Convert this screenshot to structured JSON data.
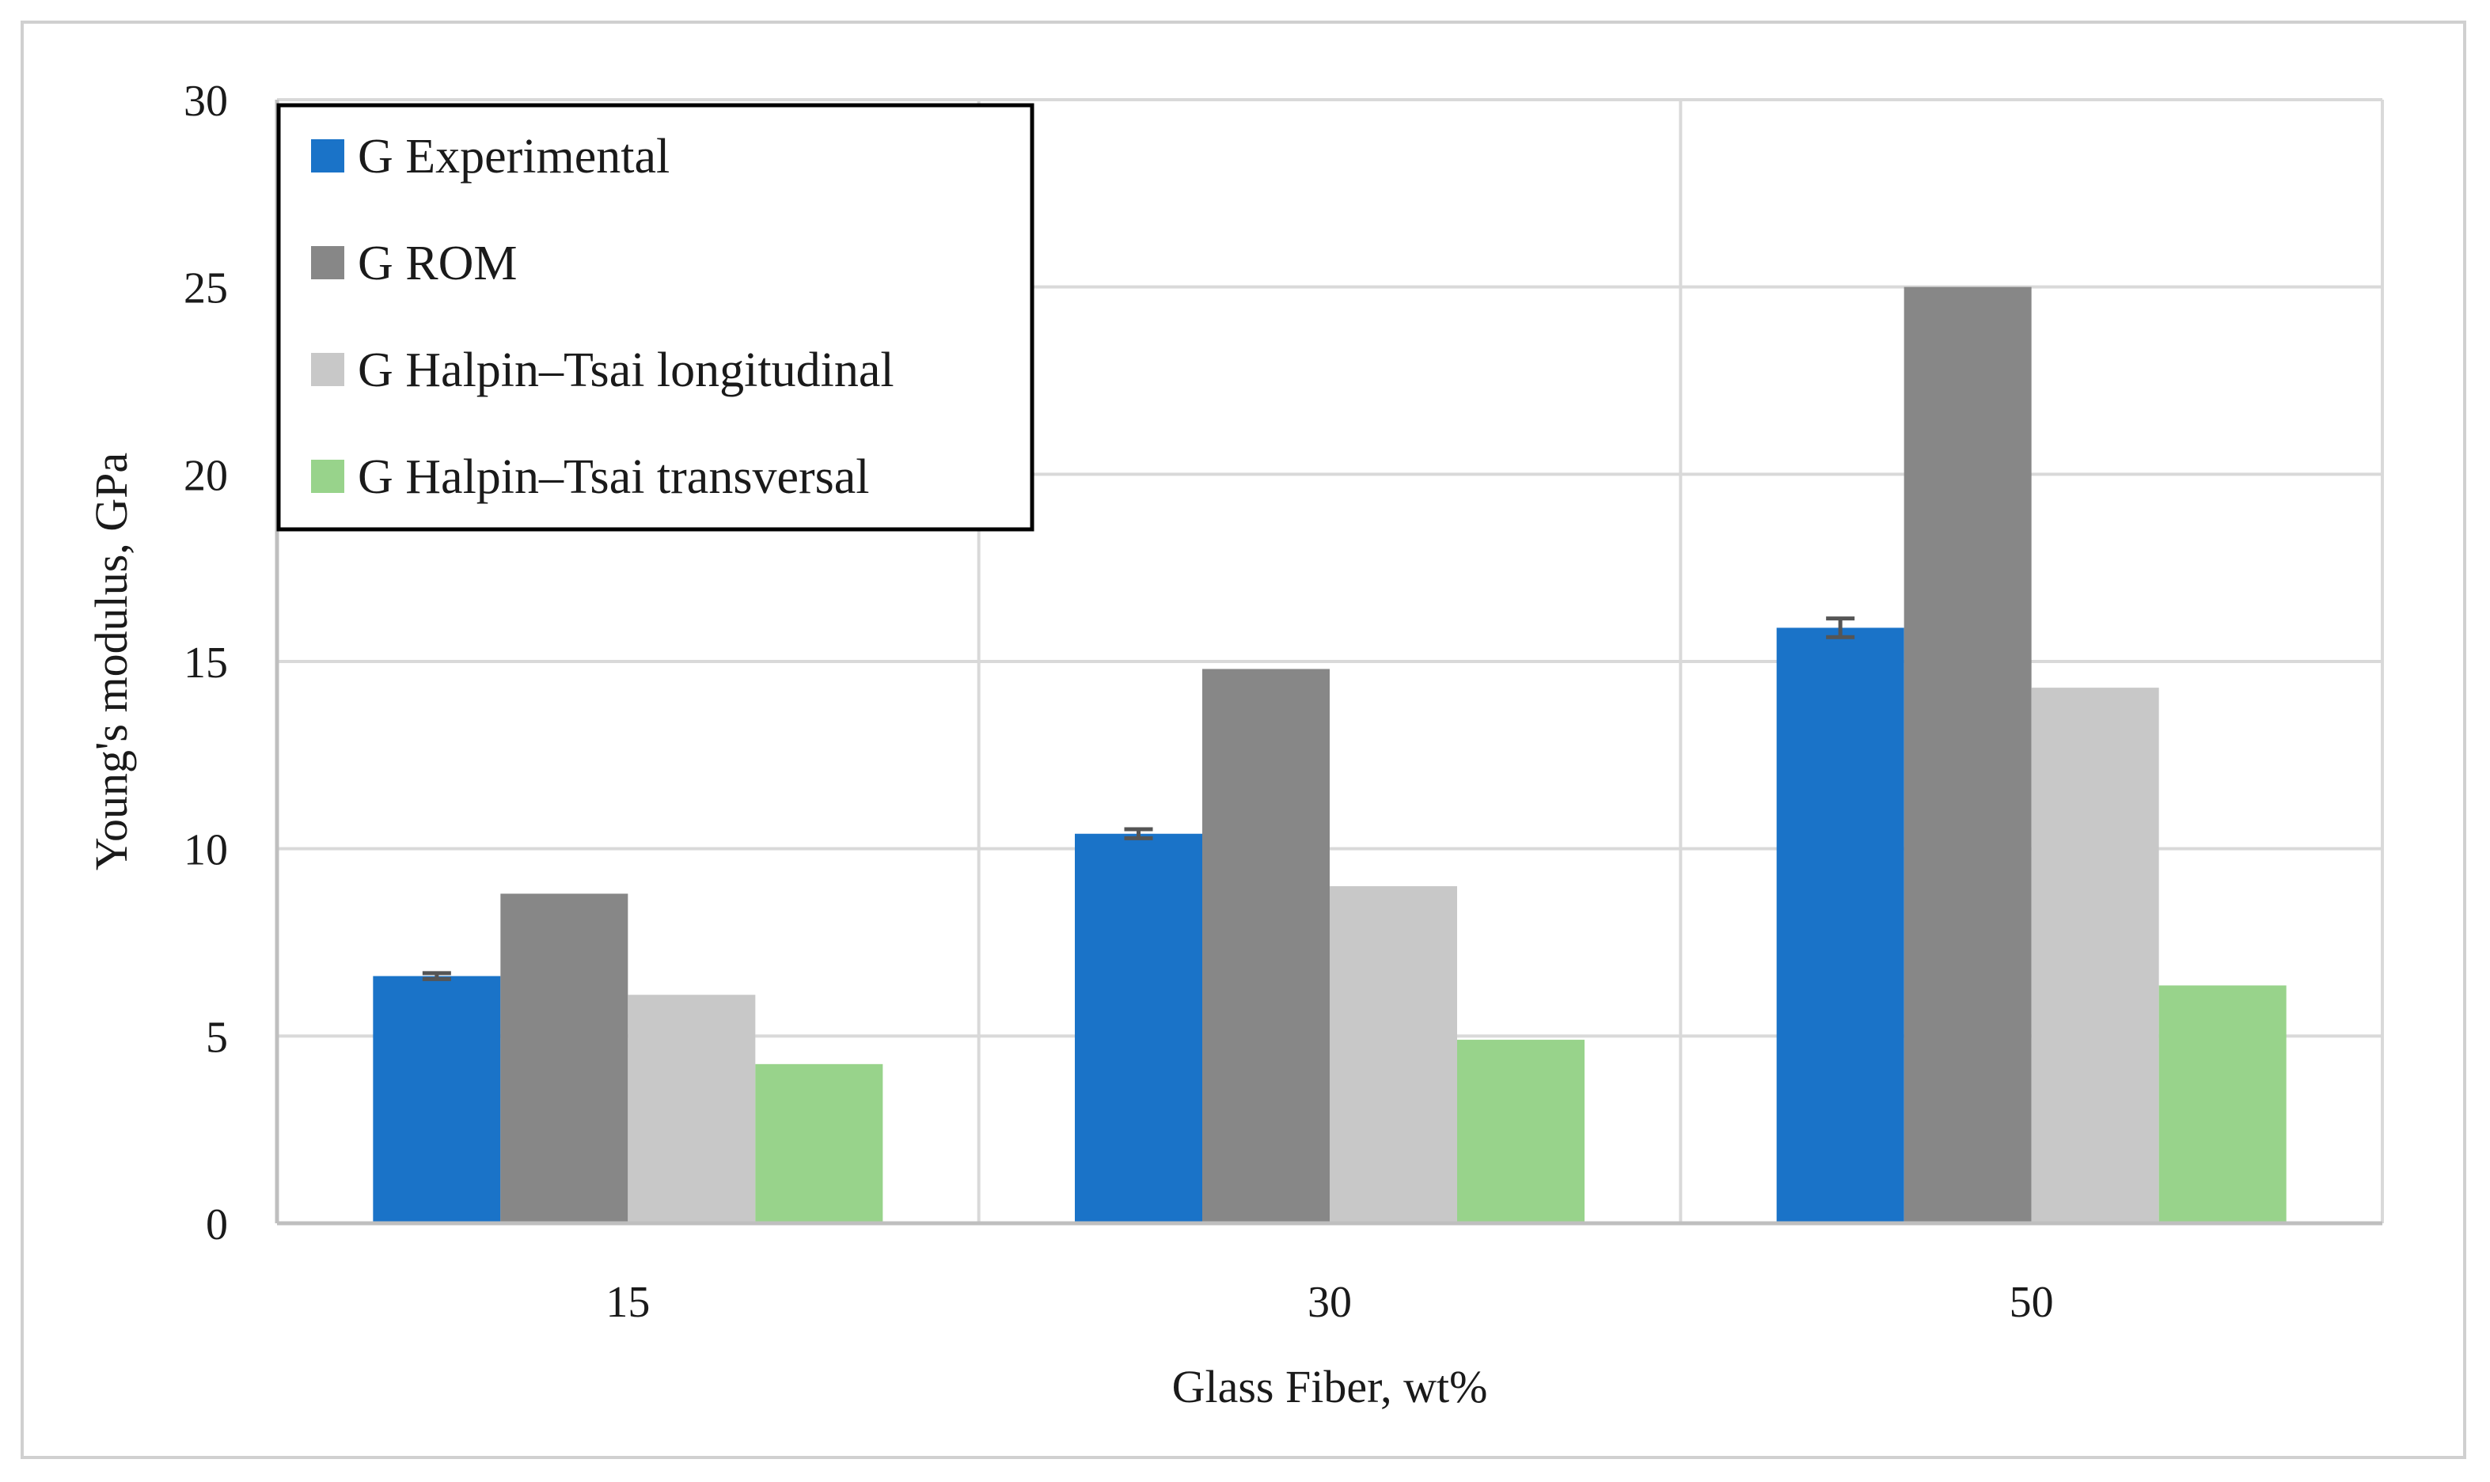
{
  "chart_data": {
    "type": "bar",
    "title": "",
    "xlabel": "Glass Fiber, wt%",
    "ylabel": "Young's modulus, GPa",
    "categories": [
      "15",
      "30",
      "50"
    ],
    "ylim": [
      0,
      30
    ],
    "yticks": [
      0,
      5,
      10,
      15,
      20,
      25,
      30
    ],
    "grid": true,
    "legend_position": "top-left",
    "series": [
      {
        "name": "G Experimental",
        "color": "#1a73c8",
        "values": [
          6.6,
          10.4,
          15.9
        ],
        "errors": [
          0.08,
          0.12,
          0.25
        ]
      },
      {
        "name": "G ROM",
        "color": "#878787",
        "values": [
          8.8,
          14.8,
          25.0
        ]
      },
      {
        "name": "G Halpin–Tsai longitudinal",
        "color": "#c8c8c8",
        "values": [
          6.1,
          9.0,
          14.3
        ]
      },
      {
        "name": "G Halpin–Tsai transversal",
        "color": "#98d38b",
        "values": [
          4.25,
          4.9,
          6.35
        ]
      }
    ]
  }
}
